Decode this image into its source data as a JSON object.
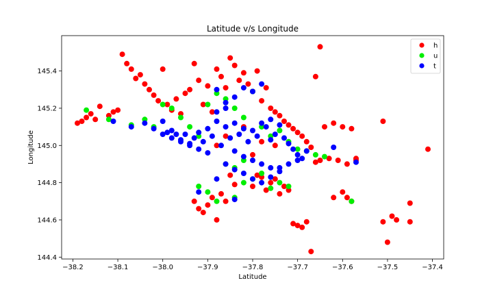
{
  "chart_data": {
    "type": "scatter",
    "title": "Latitude v/s Longitude",
    "xlabel": "Latitude",
    "ylabel": "Longitude",
    "xlim": [
      -38.225,
      -37.375
    ],
    "ylim": [
      144.39,
      145.59
    ],
    "xticks": [
      -38.2,
      -38.1,
      -38.0,
      -37.9,
      -37.8,
      -37.7,
      -37.6,
      -37.5,
      -37.4
    ],
    "xtick_labels": [
      "−38.2",
      "−38.1",
      "−38.0",
      "−37.9",
      "−37.8",
      "−37.7",
      "−37.6",
      "−37.5",
      "−37.4"
    ],
    "yticks": [
      144.4,
      144.6,
      144.8,
      145.0,
      145.2,
      145.4
    ],
    "ytick_labels": [
      "144.4",
      "144.6",
      "144.8",
      "145.0",
      "145.2",
      "145.4"
    ],
    "grid": false,
    "legend_position": "top-right",
    "series": [
      {
        "name": "h",
        "color": "#ff0000",
        "points": [
          [
            -38.19,
            145.12
          ],
          [
            -38.18,
            145.13
          ],
          [
            -38.17,
            145.15
          ],
          [
            -38.16,
            145.17
          ],
          [
            -38.15,
            145.14
          ],
          [
            -38.14,
            145.21
          ],
          [
            -38.12,
            145.16
          ],
          [
            -38.11,
            145.18
          ],
          [
            -38.1,
            145.19
          ],
          [
            -38.09,
            145.49
          ],
          [
            -38.08,
            145.44
          ],
          [
            -38.07,
            145.41
          ],
          [
            -38.06,
            145.36
          ],
          [
            -38.05,
            145.38
          ],
          [
            -38.04,
            145.33
          ],
          [
            -38.03,
            145.3
          ],
          [
            -38.02,
            145.27
          ],
          [
            -38.01,
            145.24
          ],
          [
            -38.0,
            145.41
          ],
          [
            -37.99,
            145.22
          ],
          [
            -37.98,
            145.19
          ],
          [
            -37.97,
            145.25
          ],
          [
            -37.96,
            145.17
          ],
          [
            -37.95,
            145.28
          ],
          [
            -37.94,
            145.3
          ],
          [
            -37.93,
            145.44
          ],
          [
            -37.92,
            145.35
          ],
          [
            -37.91,
            145.22
          ],
          [
            -37.9,
            145.32
          ],
          [
            -37.89,
            145.18
          ],
          [
            -37.88,
            145.41
          ],
          [
            -37.87,
            145.37
          ],
          [
            -37.86,
            145.31
          ],
          [
            -37.85,
            145.47
          ],
          [
            -37.84,
            145.43
          ],
          [
            -37.83,
            145.35
          ],
          [
            -37.82,
            145.39
          ],
          [
            -37.81,
            145.33
          ],
          [
            -37.8,
            145.29
          ],
          [
            -37.79,
            145.4
          ],
          [
            -37.78,
            145.24
          ],
          [
            -37.77,
            145.31
          ],
          [
            -37.76,
            145.2
          ],
          [
            -37.75,
            145.18
          ],
          [
            -37.74,
            145.16
          ],
          [
            -37.73,
            145.13
          ],
          [
            -37.72,
            145.11
          ],
          [
            -37.71,
            145.09
          ],
          [
            -37.7,
            145.07
          ],
          [
            -37.69,
            145.05
          ],
          [
            -37.68,
            145.02
          ],
          [
            -37.67,
            144.99
          ],
          [
            -37.66,
            145.37
          ],
          [
            -37.65,
            145.53
          ],
          [
            -37.64,
            145.1
          ],
          [
            -37.62,
            145.12
          ],
          [
            -37.6,
            145.1
          ],
          [
            -37.58,
            145.09
          ],
          [
            -37.57,
            144.93
          ],
          [
            -37.6,
            144.75
          ],
          [
            -37.59,
            144.72
          ],
          [
            -37.58,
            144.7
          ],
          [
            -37.62,
            144.72
          ],
          [
            -37.51,
            145.13
          ],
          [
            -37.51,
            144.59
          ],
          [
            -37.5,
            144.48
          ],
          [
            -37.49,
            144.62
          ],
          [
            -37.48,
            144.6
          ],
          [
            -37.45,
            144.69
          ],
          [
            -37.45,
            144.59
          ],
          [
            -37.41,
            144.98
          ],
          [
            -37.93,
            144.7
          ],
          [
            -37.92,
            144.66
          ],
          [
            -37.91,
            144.64
          ],
          [
            -37.9,
            144.68
          ],
          [
            -37.89,
            144.72
          ],
          [
            -37.88,
            144.6
          ],
          [
            -37.87,
            144.74
          ],
          [
            -37.86,
            144.7
          ],
          [
            -37.85,
            144.84
          ],
          [
            -37.84,
            144.79
          ],
          [
            -37.8,
            144.78
          ],
          [
            -37.79,
            144.84
          ],
          [
            -37.78,
            144.83
          ],
          [
            -37.77,
            144.76
          ],
          [
            -37.76,
            144.8
          ],
          [
            -37.75,
            144.82
          ],
          [
            -37.74,
            144.74
          ],
          [
            -37.73,
            144.78
          ],
          [
            -37.72,
            144.76
          ],
          [
            -37.71,
            144.58
          ],
          [
            -37.7,
            144.57
          ],
          [
            -37.69,
            144.56
          ],
          [
            -37.68,
            144.59
          ],
          [
            -37.67,
            144.43
          ],
          [
            -37.66,
            144.91
          ],
          [
            -37.65,
            144.92
          ],
          [
            -37.63,
            144.93
          ],
          [
            -37.61,
            144.92
          ],
          [
            -37.59,
            144.9
          ],
          [
            -37.57,
            144.92
          ],
          [
            -37.88,
            145.0
          ],
          [
            -37.86,
            145.05
          ],
          [
            -37.82,
            145.1
          ],
          [
            -37.8,
            144.95
          ],
          [
            -37.78,
            145.02
          ],
          [
            -37.75,
            145.0
          ]
        ]
      },
      {
        "name": "u",
        "color": "#00ee00",
        "points": [
          [
            -38.17,
            145.19
          ],
          [
            -38.12,
            145.14
          ],
          [
            -38.07,
            145.11
          ],
          [
            -38.04,
            145.14
          ],
          [
            -38.02,
            145.1
          ],
          [
            -38.0,
            145.22
          ],
          [
            -37.98,
            145.2
          ],
          [
            -37.96,
            145.15
          ],
          [
            -37.94,
            145.1
          ],
          [
            -37.92,
            145.05
          ],
          [
            -37.9,
            145.22
          ],
          [
            -37.88,
            145.28
          ],
          [
            -37.86,
            145.25
          ],
          [
            -37.84,
            145.2
          ],
          [
            -37.82,
            145.15
          ],
          [
            -37.8,
            145.29
          ],
          [
            -37.78,
            145.1
          ],
          [
            -37.76,
            145.05
          ],
          [
            -37.74,
            145.08
          ],
          [
            -37.72,
            145.02
          ],
          [
            -37.7,
            144.98
          ],
          [
            -37.68,
            144.97
          ],
          [
            -37.66,
            144.95
          ],
          [
            -37.64,
            144.94
          ],
          [
            -37.58,
            144.7
          ],
          [
            -37.92,
            144.78
          ],
          [
            -37.9,
            144.75
          ],
          [
            -37.88,
            144.7
          ],
          [
            -37.84,
            144.72
          ],
          [
            -37.82,
            144.8
          ],
          [
            -37.8,
            144.82
          ],
          [
            -37.78,
            144.85
          ],
          [
            -37.76,
            144.77
          ],
          [
            -37.74,
            144.8
          ],
          [
            -37.72,
            144.78
          ],
          [
            -37.86,
            144.9
          ],
          [
            -37.84,
            144.88
          ],
          [
            -37.82,
            144.92
          ]
        ]
      },
      {
        "name": "t",
        "color": "#0000ff",
        "points": [
          [
            -38.11,
            145.13
          ],
          [
            -38.07,
            145.1
          ],
          [
            -38.04,
            145.12
          ],
          [
            -38.02,
            145.09
          ],
          [
            -38.0,
            145.13
          ],
          [
            -37.99,
            145.07
          ],
          [
            -37.98,
            145.08
          ],
          [
            -37.97,
            145.06
          ],
          [
            -37.96,
            145.03
          ],
          [
            -37.95,
            145.06
          ],
          [
            -37.94,
            145.01
          ],
          [
            -37.93,
            145.04
          ],
          [
            -37.92,
            145.07
          ],
          [
            -37.91,
            145.02
          ],
          [
            -37.9,
            145.09
          ],
          [
            -37.89,
            145.05
          ],
          [
            -37.88,
            145.13
          ],
          [
            -37.87,
            145.0
          ],
          [
            -37.86,
            145.1
          ],
          [
            -37.85,
            145.04
          ],
          [
            -37.84,
            145.12
          ],
          [
            -37.83,
            145.06
          ],
          [
            -37.82,
            145.09
          ],
          [
            -37.81,
            145.02
          ],
          [
            -37.8,
            145.08
          ],
          [
            -37.79,
            145.05
          ],
          [
            -37.78,
            145.12
          ],
          [
            -37.77,
            145.1
          ],
          [
            -37.76,
            145.03
          ],
          [
            -37.75,
            145.06
          ],
          [
            -37.74,
            145.11
          ],
          [
            -37.73,
            145.04
          ],
          [
            -37.72,
            145.01
          ],
          [
            -37.71,
            144.98
          ],
          [
            -37.7,
            144.95
          ],
          [
            -37.69,
            144.93
          ],
          [
            -37.68,
            144.97
          ],
          [
            -37.62,
            144.99
          ],
          [
            -37.57,
            144.91
          ],
          [
            -37.88,
            145.3
          ],
          [
            -37.86,
            145.23
          ],
          [
            -37.84,
            145.26
          ],
          [
            -37.82,
            145.31
          ],
          [
            -37.8,
            145.29
          ],
          [
            -37.78,
            145.33
          ],
          [
            -37.76,
            145.14
          ],
          [
            -37.88,
            145.18
          ],
          [
            -37.86,
            145.2
          ],
          [
            -37.84,
            144.97
          ],
          [
            -37.82,
            144.94
          ],
          [
            -37.8,
            144.92
          ],
          [
            -37.78,
            144.9
          ],
          [
            -37.76,
            144.88
          ],
          [
            -37.74,
            144.86
          ],
          [
            -37.86,
            144.9
          ],
          [
            -37.84,
            144.87
          ],
          [
            -37.82,
            144.85
          ],
          [
            -37.8,
            144.82
          ],
          [
            -37.78,
            144.8
          ],
          [
            -37.76,
            144.83
          ],
          [
            -37.74,
            144.88
          ],
          [
            -37.72,
            144.9
          ],
          [
            -37.7,
            144.92
          ],
          [
            -37.88,
            144.82
          ],
          [
            -37.84,
            144.71
          ],
          [
            -37.92,
            144.75
          ],
          [
            -37.9,
            144.96
          ],
          [
            -37.92,
            144.98
          ],
          [
            -37.94,
            145.0
          ],
          [
            -37.96,
            145.02
          ],
          [
            -37.98,
            145.04
          ],
          [
            -38.0,
            145.06
          ]
        ]
      }
    ]
  }
}
